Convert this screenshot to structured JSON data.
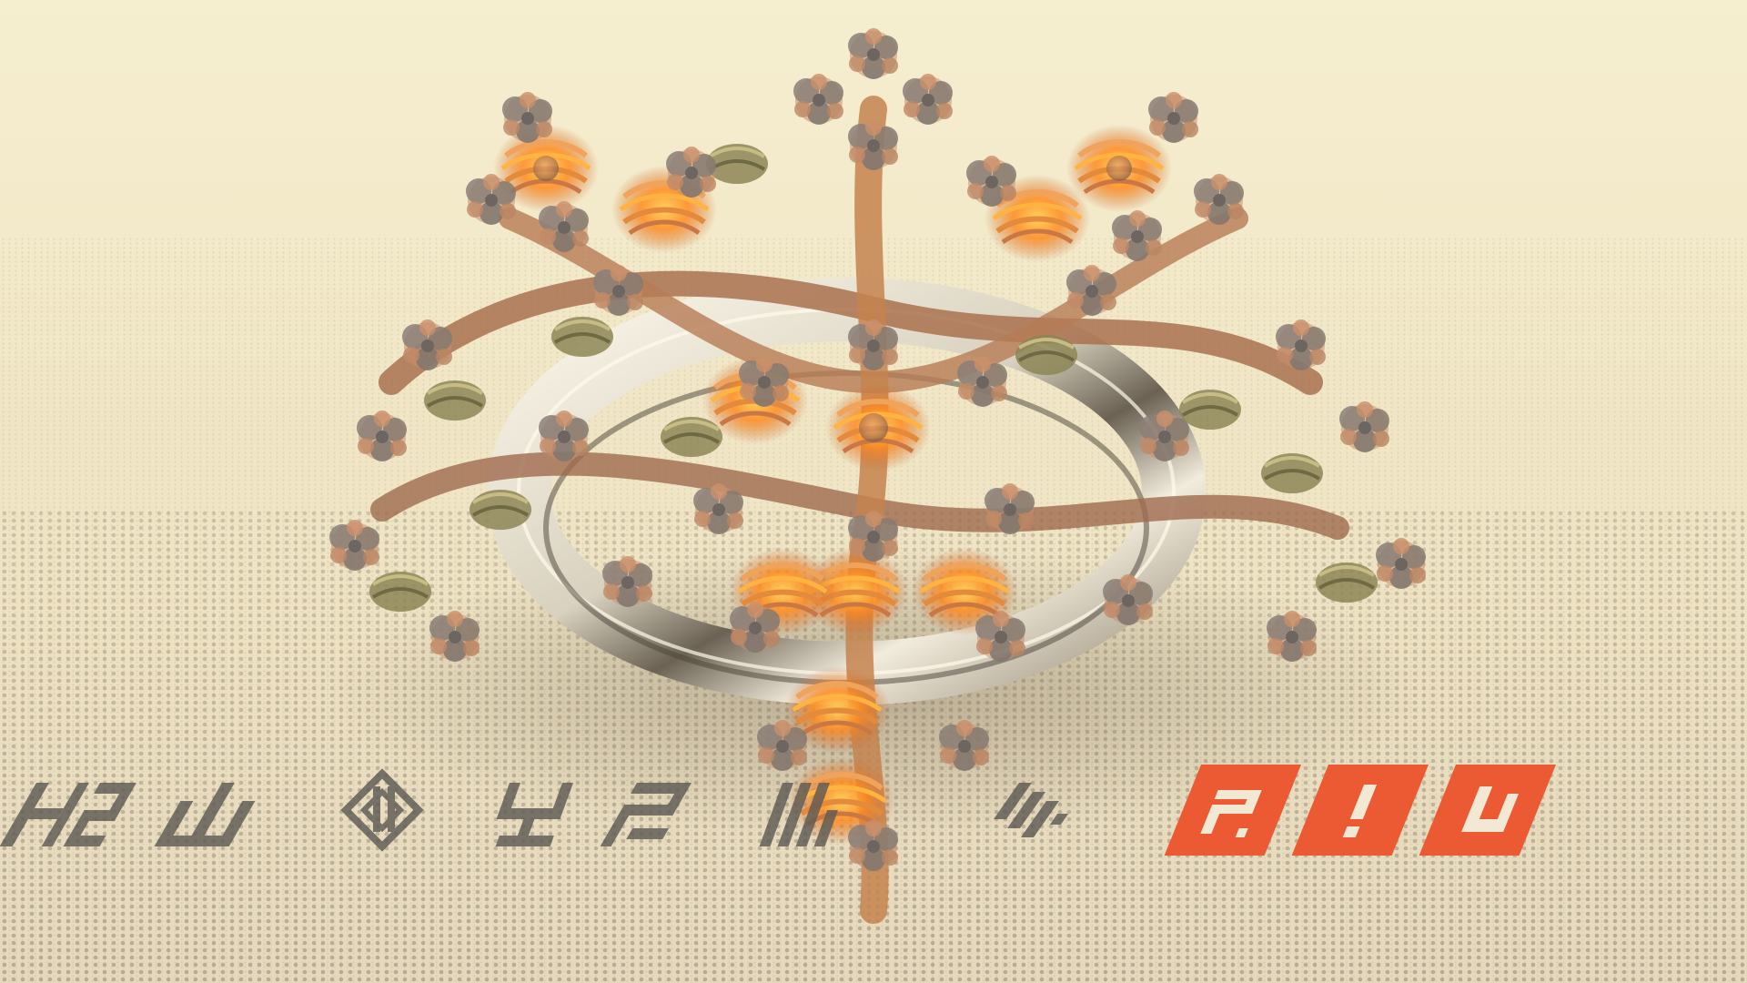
{
  "scene": {
    "description_hidden": "",
    "colors": {
      "background_top": "#f3ebc7",
      "background_bottom": "#e9dcbf",
      "floor_dots": "#a8a08a",
      "copper": "#b07a52",
      "glow_orange": "#ff8a1e",
      "olive_ribbon": "#8d8656",
      "silver_ring": "#e6e1d2",
      "grey_tendril": "#7d7a74",
      "emblem_grey": "#5f5b55",
      "emblem_red": "#ec5a34"
    },
    "emblems": {
      "grey_count": 7,
      "red_count": 3
    }
  }
}
